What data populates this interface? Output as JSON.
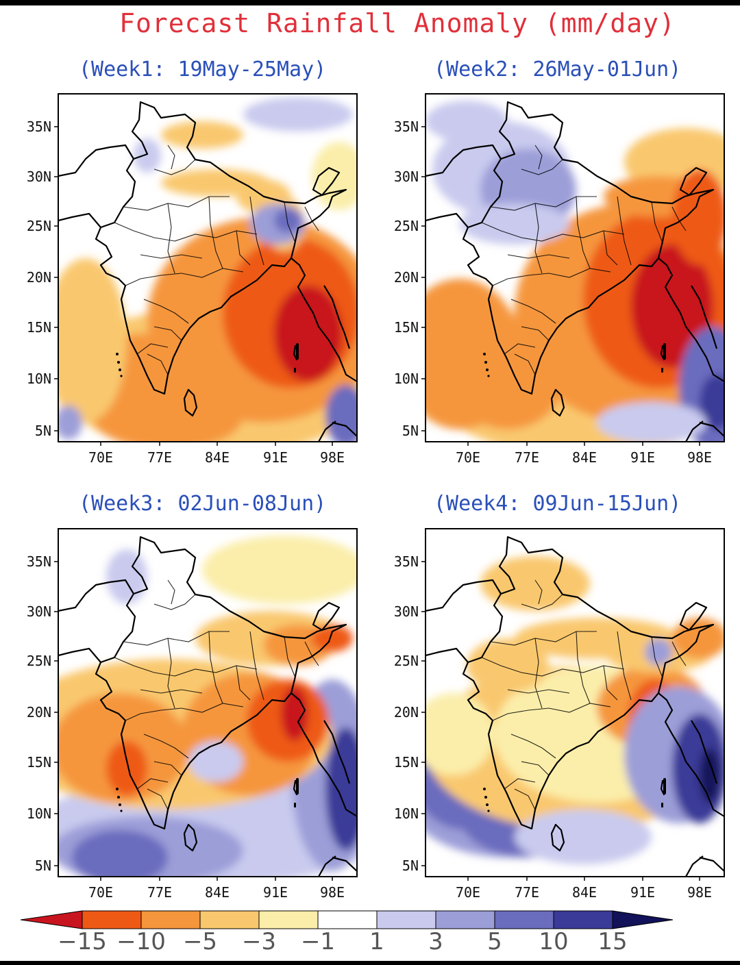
{
  "title": "Forecast Rainfall Anomaly (mm/day)",
  "panels": [
    {
      "label": "(Week1: 19May-25May)"
    },
    {
      "label": "(Week2: 26May-01Jun)"
    },
    {
      "label": "(Week3: 02Jun-08Jun)"
    },
    {
      "label": "(Week4: 09Jun-15Jun)"
    }
  ],
  "lat_ticks": [
    "35N",
    "30N",
    "25N",
    "20N",
    "15N",
    "10N",
    "5N"
  ],
  "lon_ticks": [
    "70E",
    "77E",
    "84E",
    "91E",
    "98E"
  ],
  "colorbar": {
    "labels": [
      "−15",
      "−10",
      "−5",
      "−3",
      "−1",
      "1",
      "3",
      "5",
      "10",
      "15"
    ],
    "colors": [
      "#c8141e",
      "#ee5a16",
      "#f5963c",
      "#f9c86e",
      "#fbeeaa",
      "#ffffff",
      "#c9caee",
      "#9c9ed8",
      "#6a6cbe",
      "#3a3a98",
      "#12125a"
    ]
  },
  "map": {
    "colors": {
      "land_outline": "#000000",
      "neutral": "#ffffff"
    }
  }
}
